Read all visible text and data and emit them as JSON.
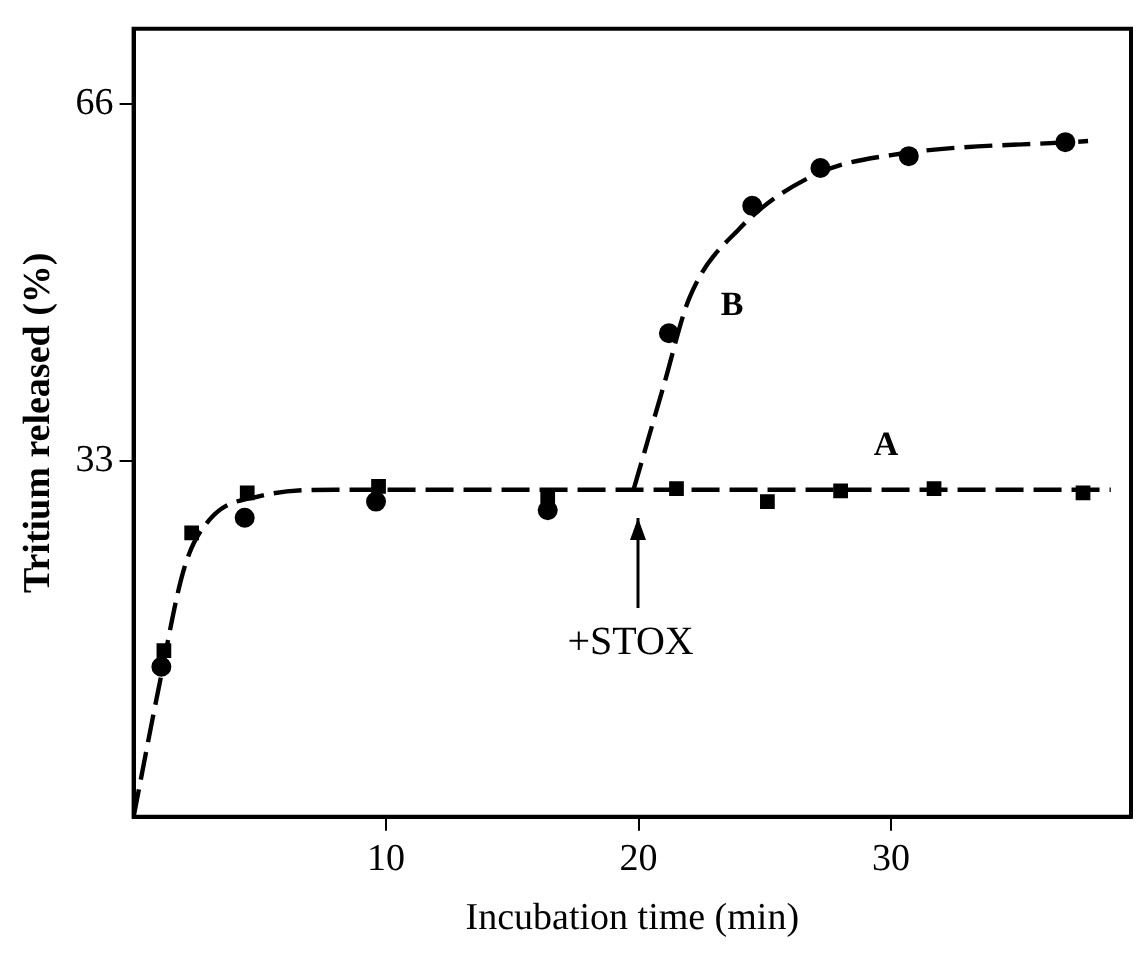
{
  "chart_data": {
    "type": "scatter",
    "xlabel": "Incubation time (min)",
    "ylabel": "Tritium released (%)",
    "xlim": [
      0,
      39.5
    ],
    "ylim": [
      0,
      73
    ],
    "xticks": [
      10,
      20,
      30
    ],
    "yticks": [
      33,
      66
    ],
    "grid": false,
    "legend": false,
    "line_style": "dashed",
    "series": [
      {
        "marker": "square",
        "color": "#000000",
        "x": [
          1.2,
          2.3,
          4.5,
          9.7,
          16.4,
          21.5,
          25.1,
          28.0,
          31.7,
          37.6
        ],
        "values": [
          15.4,
          26.3,
          30.0,
          30.6,
          29.7,
          30.4,
          29.2,
          30.2,
          30.4,
          30.0
        ]
      },
      {
        "marker": "circle",
        "color": "#000000",
        "x": [
          1.1,
          4.4,
          9.6,
          16.4,
          21.2,
          24.5,
          27.2,
          30.7,
          36.9
        ],
        "values": [
          13.9,
          27.7,
          29.2,
          28.4,
          44.8,
          56.6,
          60.1,
          61.2,
          62.5
        ]
      },
      {
        "type": "line",
        "name": "A",
        "color": "#000000",
        "x": [
          0,
          1,
          2,
          3,
          5,
          8,
          38.7
        ],
        "values": [
          0,
          12,
          23,
          27.5,
          29.7,
          30.3,
          30.3
        ]
      },
      {
        "type": "line",
        "name": "B",
        "color": "#000000",
        "x": [
          19.8,
          21,
          22,
          24,
          27,
          30,
          37.8
        ],
        "values": [
          30.3,
          40,
          48,
          54.5,
          59.5,
          61.3,
          62.6
        ]
      }
    ],
    "ref_lines": [
      {
        "axis": "x",
        "value": 20,
        "label": "+STOX"
      }
    ]
  }
}
